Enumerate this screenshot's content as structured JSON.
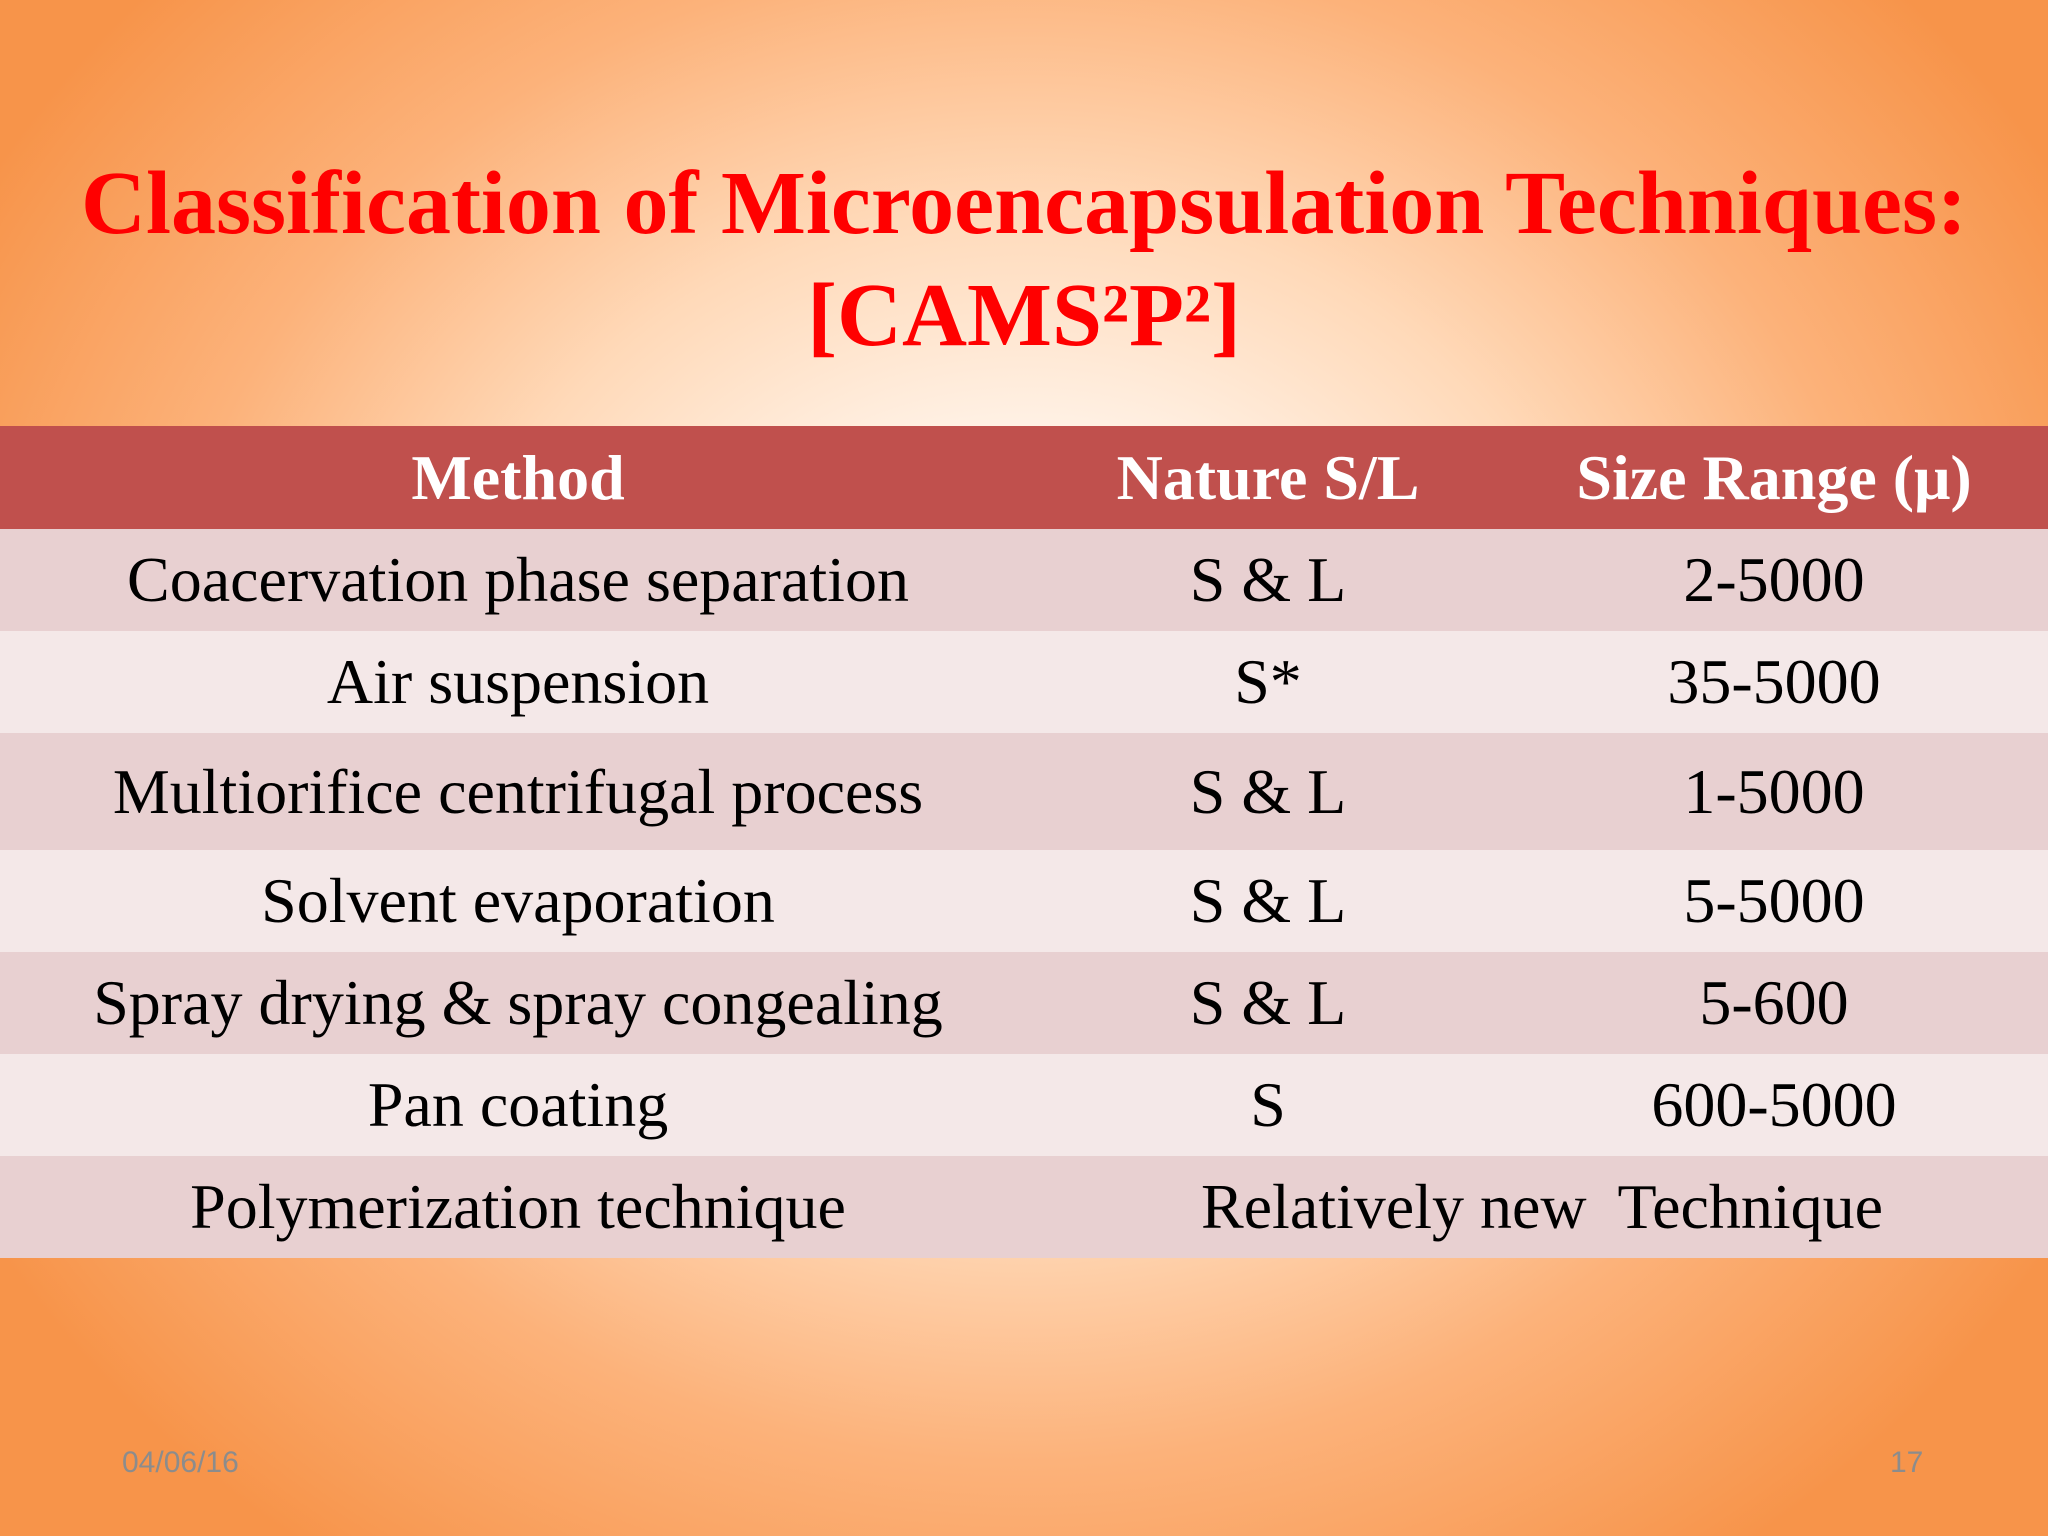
{
  "slide": {
    "title_line1": "Classification of Microencapsulation Techniques:",
    "title_line2": "[CAMS²P²]"
  },
  "table": {
    "headers": [
      "Method",
      "Nature  S/L",
      "Size Range (μ)"
    ],
    "rows": [
      {
        "method": "Coacervation phase separation",
        "nature": "S & L",
        "size": "2-5000"
      },
      {
        "method": "Air suspension",
        "nature": "S*",
        "size": "35-5000"
      },
      {
        "method": "Multiorifice centrifugal process",
        "nature": "S & L",
        "size": "1-5000"
      },
      {
        "method": "Solvent evaporation",
        "nature": "S & L",
        "size": "5-5000"
      },
      {
        "method": "Spray drying & spray congealing",
        "nature": "S & L",
        "size": "5-600"
      },
      {
        "method": "Pan coating",
        "nature": "S",
        "size": "600-5000"
      },
      {
        "method": "Polymerization technique",
        "note": "Relatively new  Technique"
      }
    ]
  },
  "footer": {
    "date": "04/06/16",
    "page": "17"
  },
  "colors": {
    "title": "#ff0000",
    "header_bg": "#c0504d",
    "row_odd": "#e8d0d1",
    "row_even": "#f4e8e8"
  }
}
